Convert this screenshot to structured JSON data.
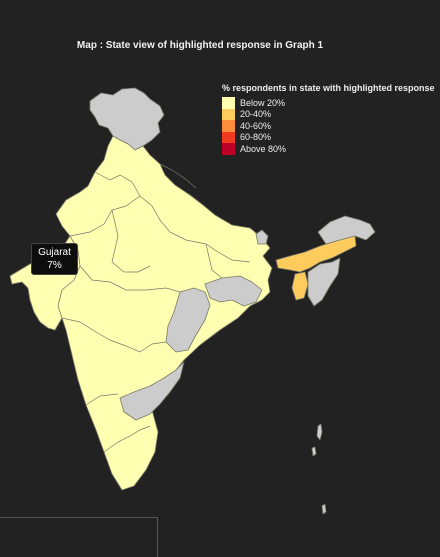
{
  "title": "Map : State view of highlighted response in Graph 1",
  "legend": {
    "title": "% respondents in state with highlighted response",
    "items": [
      {
        "label": "Below 20%",
        "color": "#ffffb2"
      },
      {
        "label": "20-40%",
        "color": "#fecc5c"
      },
      {
        "label": "40-60%",
        "color": "#fd8d3c"
      },
      {
        "label": "60-80%",
        "color": "#f03b20"
      },
      {
        "label": "Above 80%",
        "color": "#bd0026"
      }
    ]
  },
  "tooltip": {
    "state": "Gujarat",
    "value": "7%"
  },
  "colors": {
    "no_data": "#cccccc",
    "border": "#7a7a6a",
    "background": "#222222"
  }
}
